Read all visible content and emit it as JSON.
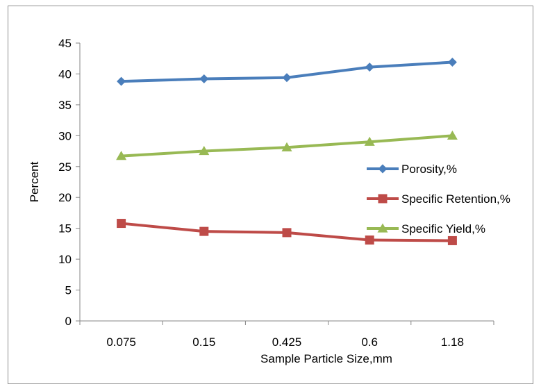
{
  "chart_data": {
    "type": "line",
    "categories": [
      "0.075",
      "0.15",
      "0.425",
      "0.6",
      "1.18"
    ],
    "xlabel": "Sample Particle Size,mm",
    "ylabel": "Percent",
    "ylim": [
      0,
      45
    ],
    "yticks": [
      "0",
      "5",
      "10",
      "15",
      "20",
      "25",
      "30",
      "35",
      "40",
      "45"
    ],
    "grid": false,
    "legend_position": "right",
    "series": [
      {
        "name": "Porosity,%",
        "values": [
          38.8,
          39.2,
          39.4,
          41.1,
          41.9
        ],
        "color": "#4a7ebb",
        "marker": "diamond"
      },
      {
        "name": "Specific Retention,%",
        "values": [
          15.8,
          14.5,
          14.3,
          13.1,
          13.0
        ],
        "color": "#be4b48",
        "marker": "square"
      },
      {
        "name": "Specific Yield,%",
        "values": [
          26.7,
          27.5,
          28.1,
          29.0,
          30.0
        ],
        "color": "#98b954",
        "marker": "triangle"
      }
    ]
  }
}
